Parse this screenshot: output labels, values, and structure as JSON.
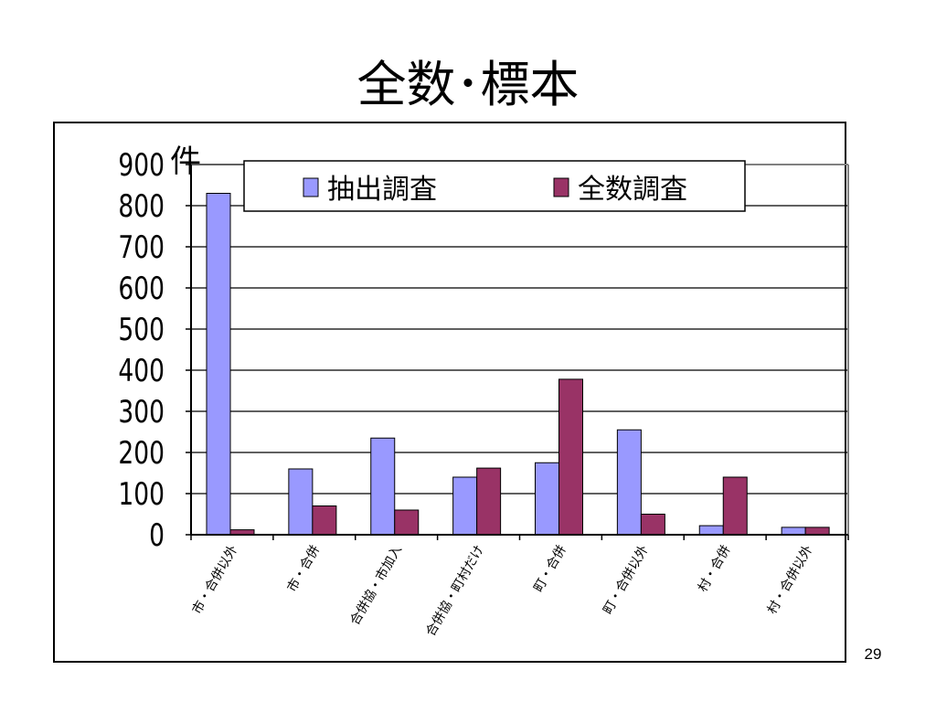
{
  "slide": {
    "title": "全数･標本",
    "page_number": "29"
  },
  "chart_data": {
    "type": "bar",
    "title": "",
    "xlabel": "",
    "ylabel": "件",
    "ylim": [
      0,
      900
    ],
    "yticks": [
      0,
      100,
      200,
      300,
      400,
      500,
      600,
      700,
      800,
      900
    ],
    "grid": true,
    "legend": "top",
    "categories": [
      "市・合併以外",
      "市・合併",
      "合併協・市加入",
      "合併協・町村だけ",
      "町・合併",
      "町・合併以外",
      "村・合併",
      "村・合併以外"
    ],
    "series": [
      {
        "name": "抽出調査",
        "color": "#9999ff",
        "values": [
          830,
          160,
          235,
          140,
          175,
          255,
          22,
          18
        ]
      },
      {
        "name": "全数調査",
        "color": "#993366",
        "values": [
          12,
          70,
          60,
          162,
          378,
          50,
          140,
          18
        ]
      }
    ]
  }
}
